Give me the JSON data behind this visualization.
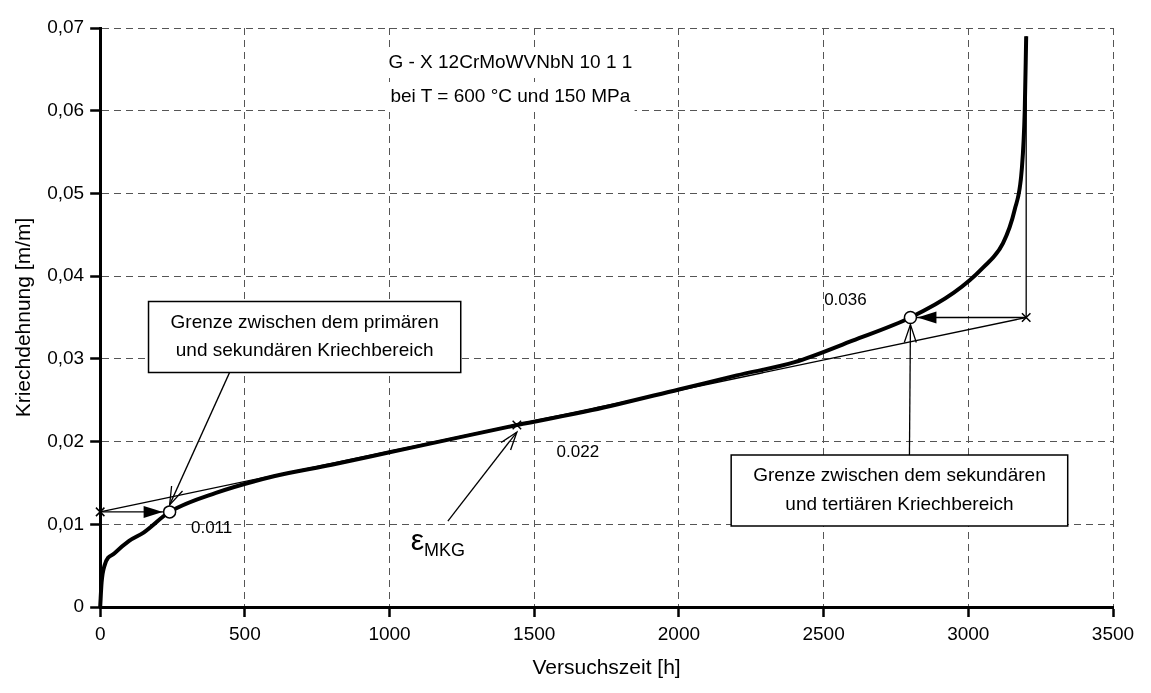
{
  "chart_data": {
    "type": "line",
    "title": "G - X 12CrMoWVNbN 10 1 1",
    "subtitle": "bei T = 600 °C und 150 MPa",
    "xlabel": "Versuchszeit [h]",
    "ylabel": "Kriechdehnung [m/m]",
    "xlim": [
      0,
      3500
    ],
    "xticks": [
      0,
      500,
      1000,
      1500,
      2000,
      2500,
      3000,
      3500
    ],
    "ylim": [
      0,
      0.07
    ],
    "yticks": [
      0,
      {
        "value": 0.01,
        "label": "0,01"
      },
      {
        "value": 0.02,
        "label": "0,02"
      },
      {
        "value": 0.03,
        "label": "0,03"
      },
      {
        "value": 0.04,
        "label": "0,04"
      },
      {
        "value": 0.05,
        "label": "0,05"
      },
      {
        "value": 0.06,
        "label": "0,06"
      },
      {
        "value": 0.07,
        "label": "0,07"
      }
    ],
    "grid": true,
    "legend": false,
    "line_style": "solid",
    "series": [
      {
        "type": "line",
        "color": "#000000",
        "x": [
          0,
          5,
          15,
          50,
          100,
          150,
          240,
          400,
          600,
          800,
          1000,
          1200,
          1440,
          1700,
          2000,
          2200,
          2400,
          2600,
          2800,
          2950,
          3050,
          3120,
          3160,
          3185,
          3195,
          3200
        ],
        "values": [
          0,
          0.003,
          0.005,
          0.0065,
          0.008,
          0.009,
          0.0115,
          0.0138,
          0.0158,
          0.0172,
          0.0187,
          0.0202,
          0.022,
          0.0238,
          0.0263,
          0.028,
          0.0296,
          0.0322,
          0.035,
          0.038,
          0.041,
          0.044,
          0.048,
          0.053,
          0.06,
          0.069
        ]
      },
      {
        "type": "line",
        "color": "#000000",
        "x": [
          0,
          3200
        ],
        "values": [
          0.0115,
          0.035
        ]
      },
      {
        "type": "line",
        "color": "#000000",
        "x": [
          3200,
          3200
        ],
        "values": [
          0.035,
          0.069
        ]
      },
      {
        "type": "line",
        "color": "#000000",
        "x": [
          0,
          240
        ],
        "values": [
          0.0115,
          0.0115
        ]
      },
      {
        "type": "line",
        "color": "#000000",
        "x": [
          3200,
          2800
        ],
        "values": [
          0.035,
          0.035
        ]
      },
      {
        "type": "scatter",
        "marker": "cross",
        "color": "#000000",
        "x": [
          0,
          1440,
          3200
        ],
        "values": [
          0.0115,
          0.022,
          0.035
        ]
      },
      {
        "type": "scatter",
        "marker": "circle",
        "color": "#000000",
        "x": [
          240,
          2800
        ],
        "values": [
          0.0115,
          0.035
        ]
      }
    ],
    "annotations": [
      {
        "text": "Grenze zwischen dem primären\nund sekundären Kriechbereich",
        "x": 240,
        "y": 0.0115
      },
      {
        "text": "0.011",
        "x": 240,
        "y": 0.0115
      },
      {
        "text": "ε$_{MKG}$",
        "x": 1440,
        "y": 0.022
      },
      {
        "text": "0.022",
        "x": 1440,
        "y": 0.022
      },
      {
        "text": "0.036",
        "x": 2800,
        "y": 0.035
      },
      {
        "text": "Grenze zwischen dem sekundären\nund tertiären Kriechbereich",
        "x": 2800,
        "y": 0.035
      }
    ]
  }
}
